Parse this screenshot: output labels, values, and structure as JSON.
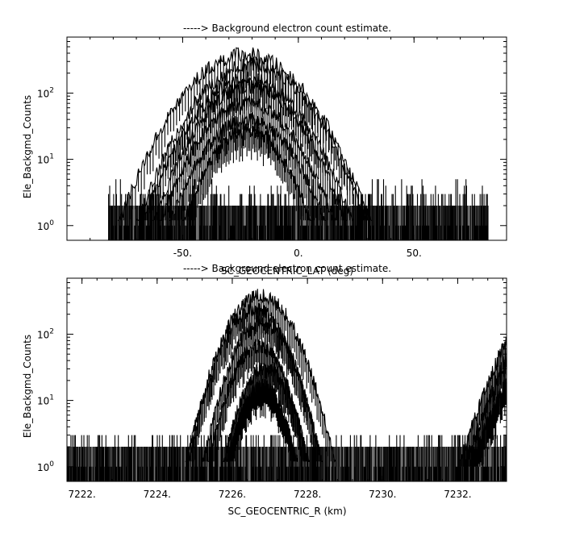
{
  "chart_data": [
    {
      "type": "line",
      "title": "-----> Background electron count estimate.",
      "xlabel": "SC_GEOCENTRIC_LAT (deg)",
      "ylabel": "Ele_Backgmd_Counts",
      "yscale": "log",
      "xlim": [
        -100,
        90
      ],
      "ylim": [
        0.6,
        700
      ],
      "x_ticks": [
        "-50.",
        "0.",
        "50."
      ],
      "x_tick_values": [
        -50,
        0,
        50
      ],
      "y_ticks": [
        "10^0",
        "10^1",
        "10^2"
      ],
      "y_tick_values": [
        1,
        10,
        100
      ],
      "noise_x_range": [
        -82,
        82
      ],
      "noise_levels": [
        0,
        1,
        2,
        3,
        4,
        5
      ],
      "arcs": [
        {
          "center": -23,
          "halfwidth": 55,
          "peak": 380
        },
        {
          "center": -20,
          "halfwidth": 50,
          "peak": 270
        },
        {
          "center": -22,
          "halfwidth": 46,
          "peak": 160
        },
        {
          "center": -21,
          "halfwidth": 42,
          "peak": 130
        },
        {
          "center": -22,
          "halfwidth": 38,
          "peak": 70
        },
        {
          "center": -22,
          "halfwidth": 34,
          "peak": 40
        },
        {
          "center": -22,
          "halfwidth": 28,
          "peak": 28
        }
      ]
    },
    {
      "type": "line",
      "title": "-----> Background electron count estimate.",
      "xlabel": "SC_GEOCENTRIC_R (km)",
      "ylabel": "Ele_Backgmd_Counts",
      "yscale": "log",
      "xlim": [
        7221.6,
        7233.3
      ],
      "ylim": [
        0.6,
        700
      ],
      "x_ticks": [
        "7222.",
        "7224.",
        "7226.",
        "7228.",
        "7230.",
        "7232."
      ],
      "x_tick_values": [
        7222,
        7224,
        7226,
        7228,
        7230,
        7232
      ],
      "y_ticks": [
        "10^0",
        "10^1",
        "10^2"
      ],
      "y_tick_values": [
        1,
        10,
        100
      ],
      "noise_x_range": [
        7221.6,
        7233.3
      ],
      "noise_levels": [
        0,
        1,
        2,
        3
      ],
      "arcs": [
        {
          "center": 7226.75,
          "halfwidth": 2.0,
          "peak": 380
        },
        {
          "center": 7226.6,
          "halfwidth": 1.8,
          "peak": 240
        },
        {
          "center": 7226.8,
          "halfwidth": 1.6,
          "peak": 150
        },
        {
          "center": 7226.7,
          "halfwidth": 1.35,
          "peak": 65
        },
        {
          "center": 7226.9,
          "halfwidth": 1.15,
          "peak": 32
        },
        {
          "center": 7226.8,
          "halfwidth": 0.95,
          "peak": 16
        }
      ],
      "edge_arcs": [
        {
          "start": 7232.05,
          "end": 7233.3,
          "peak": 90
        },
        {
          "start": 7232.2,
          "end": 7233.3,
          "peak": 45
        },
        {
          "start": 7232.35,
          "end": 7233.3,
          "peak": 20
        }
      ]
    }
  ]
}
